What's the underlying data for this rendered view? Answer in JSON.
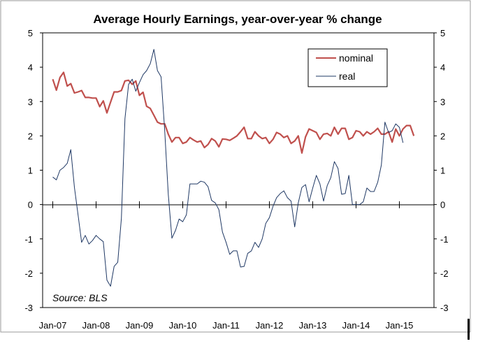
{
  "chart_data": {
    "type": "line",
    "title": "Average Hourly Earnings, year-over-year % change",
    "xlabel": "",
    "ylabel": "",
    "ylim": [
      -3,
      5
    ],
    "y_ticks": [
      "5",
      "4",
      "3",
      "2",
      "1",
      "0",
      "-1",
      "-2",
      "-3"
    ],
    "y_ticks_right": [
      "5",
      "4",
      "3",
      "2",
      "1",
      "0",
      "-1",
      "-2",
      "-3"
    ],
    "x_ticks": [
      "Jan-07",
      "Jan-08",
      "Jan-09",
      "Jan-10",
      "Jan-11",
      "Jan-12",
      "Jan-13",
      "Jan-14",
      "Jan-15"
    ],
    "x_start": "2007-01",
    "legend_position": "top-right",
    "source": "Source: BLS",
    "series": [
      {
        "name": "nominal",
        "color": "#c0504d",
        "values": [
          3.65,
          3.33,
          3.7,
          3.85,
          3.45,
          3.52,
          3.25,
          3.28,
          3.32,
          3.12,
          3.12,
          3.1,
          3.1,
          2.85,
          3.02,
          2.67,
          2.98,
          3.28,
          3.28,
          3.32,
          3.6,
          3.62,
          3.5,
          3.6,
          3.18,
          3.27,
          2.86,
          2.8,
          2.6,
          2.4,
          2.35,
          2.35,
          2.05,
          1.82,
          1.95,
          1.95,
          1.78,
          1.82,
          1.95,
          1.88,
          1.82,
          1.85,
          1.66,
          1.75,
          1.92,
          1.85,
          1.68,
          1.91,
          1.9,
          1.87,
          1.93,
          2.0,
          2.12,
          2.25,
          1.92,
          1.92,
          2.12,
          2.0,
          1.92,
          1.95,
          1.78,
          1.9,
          2.1,
          2.05,
          1.95,
          2.0,
          1.78,
          1.85,
          2.0,
          1.5,
          1.97,
          2.2,
          2.15,
          2.1,
          1.9,
          2.05,
          2.07,
          2.0,
          2.25,
          2.05,
          2.22,
          2.22,
          1.9,
          1.95,
          2.15,
          2.12,
          2.0,
          2.12,
          2.05,
          2.12,
          2.22,
          2.05,
          2.05,
          2.12,
          1.82,
          2.2,
          2.0,
          2.2,
          2.3,
          2.3,
          2.0
        ]
      },
      {
        "name": "real",
        "color": "#1f3864",
        "values": [
          0.8,
          0.72,
          1.0,
          1.08,
          1.2,
          1.6,
          0.5,
          -0.3,
          -1.1,
          -0.9,
          -1.15,
          -1.05,
          -0.9,
          -1.0,
          -1.08,
          -2.2,
          -2.38,
          -1.8,
          -1.68,
          -0.4,
          2.5,
          3.5,
          3.65,
          3.3,
          3.55,
          3.78,
          3.9,
          4.1,
          4.52,
          3.9,
          3.72,
          2.15,
          0.3,
          -0.98,
          -0.75,
          -0.42,
          -0.5,
          -0.3,
          0.6,
          0.6,
          0.6,
          0.68,
          0.65,
          0.52,
          0.12,
          0.05,
          -0.15,
          -0.8,
          -1.1,
          -1.45,
          -1.35,
          -1.35,
          -1.82,
          -1.8,
          -1.42,
          -1.35,
          -1.1,
          -1.25,
          -1.0,
          -0.55,
          -0.38,
          -0.05,
          0.2,
          0.32,
          0.4,
          0.2,
          0.1,
          -0.65,
          0.05,
          0.5,
          0.58,
          0.08,
          0.48,
          0.85,
          0.6,
          0.1,
          0.55,
          0.78,
          1.25,
          1.05,
          0.3,
          0.32,
          0.85,
          0.0,
          0.0,
          0.0,
          0.08,
          0.48,
          0.38,
          0.38,
          0.65,
          1.15,
          2.4,
          2.1,
          2.15,
          2.35,
          2.25,
          1.8
        ]
      }
    ]
  }
}
